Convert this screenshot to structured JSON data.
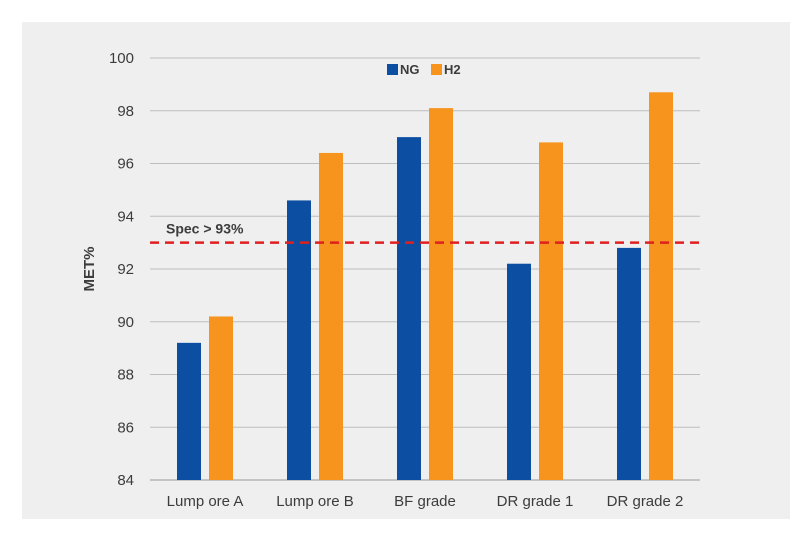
{
  "chart_data": {
    "type": "bar",
    "title": "",
    "xlabel": "",
    "ylabel": "MET%",
    "ylim": [
      84,
      100
    ],
    "yticks": [
      84,
      86,
      88,
      90,
      92,
      94,
      96,
      98,
      100
    ],
    "grid": true,
    "legend_position": "top-center",
    "categories": [
      "Lump ore A",
      "Lump ore B",
      "BF grade",
      "DR grade 1",
      "DR grade 2"
    ],
    "series": [
      {
        "name": "NG",
        "color": "#0b4ea2",
        "values": [
          89.2,
          94.6,
          97.0,
          92.2,
          92.8
        ]
      },
      {
        "name": "H2",
        "color": "#f7941d",
        "values": [
          90.2,
          96.4,
          98.1,
          96.8,
          98.7
        ]
      }
    ],
    "reference_line": {
      "label": "Spec > 93%",
      "value": 93,
      "color": "#e02020",
      "style": "dashed"
    }
  }
}
